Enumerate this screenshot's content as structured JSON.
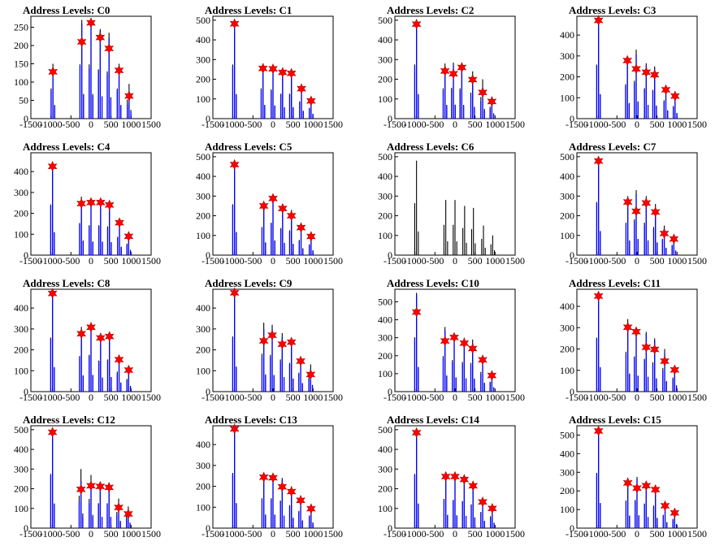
{
  "chart_data": {
    "type": "bar",
    "layout": {
      "rows": 4,
      "cols": 4
    },
    "xlim": [
      -1500,
      1500
    ],
    "xticks": [
      -1500,
      -1000,
      -500,
      0,
      500,
      1000,
      1500
    ],
    "colors": {
      "black_histogram": "#000000",
      "blue_histogram": "#0000ff",
      "peak_marker": "#ff0000"
    },
    "panels": [
      {
        "title": "Address Levels: C0",
        "ylim": [
          0,
          280
        ],
        "yticks": [
          0,
          50,
          100,
          150,
          200,
          250
        ],
        "peak_x": [
          -950,
          -230,
          0,
          230,
          450,
          700,
          950
        ],
        "black_max": [
          150,
          270,
          270,
          245,
          235,
          150,
          95
        ],
        "blue_max": [
          140,
          260,
          250,
          240,
          220,
          140,
          70
        ],
        "markers": [
          128,
          210,
          262,
          222,
          192,
          132,
          62
        ]
      },
      {
        "title": "Address Levels: C1",
        "ylim": [
          0,
          520
        ],
        "yticks": [
          0,
          100,
          200,
          300,
          400,
          500
        ],
        "peak_x": [
          -960,
          -250,
          0,
          240,
          460,
          710,
          950
        ],
        "black_max": [
          500,
          280,
          270,
          230,
          230,
          160,
          100
        ],
        "blue_max": [
          485,
          265,
          255,
          225,
          225,
          150,
          90
        ],
        "markers": [
          482,
          255,
          253,
          235,
          230,
          152,
          90
        ]
      },
      {
        "title": "Address Levels: C2",
        "ylim": [
          0,
          520
        ],
        "yticks": [
          0,
          100,
          200,
          300,
          400,
          500
        ],
        "peak_x": [
          -960,
          -250,
          -40,
          170,
          440,
          690,
          920
        ],
        "black_max": [
          500,
          280,
          285,
          280,
          240,
          200,
          110
        ],
        "blue_max": [
          485,
          260,
          270,
          260,
          220,
          160,
          90
        ],
        "markers": [
          480,
          242,
          228,
          260,
          198,
          133,
          87
        ]
      },
      {
        "title": "Address Levels: C3",
        "ylim": [
          0,
          490
        ],
        "yticks": [
          0,
          100,
          200,
          300,
          400
        ],
        "peak_x": [
          -960,
          -240,
          -20,
          230,
          440,
          720,
          950
        ],
        "black_max": [
          470,
          300,
          330,
          265,
          250,
          160,
          110
        ],
        "blue_max": [
          460,
          280,
          310,
          255,
          240,
          150,
          100
        ],
        "markers": [
          470,
          278,
          238,
          222,
          210,
          138,
          108
        ]
      },
      {
        "title": "Address Levels: C4",
        "ylim": [
          0,
          490
        ],
        "yticks": [
          0,
          100,
          200,
          300,
          400
        ],
        "peak_x": [
          -960,
          -240,
          0,
          240,
          460,
          710,
          940
        ],
        "black_max": [
          440,
          280,
          260,
          260,
          250,
          160,
          100
        ],
        "blue_max": [
          430,
          265,
          250,
          250,
          240,
          150,
          90
        ],
        "markers": [
          425,
          247,
          252,
          252,
          240,
          155,
          90
        ]
      },
      {
        "title": "Address Levels: C5",
        "ylim": [
          0,
          520
        ],
        "yticks": [
          0,
          100,
          200,
          300,
          400,
          500
        ],
        "peak_x": [
          -960,
          -230,
          0,
          240,
          460,
          700,
          950
        ],
        "black_max": [
          470,
          260,
          300,
          250,
          230,
          140,
          100
        ],
        "blue_max": [
          460,
          250,
          290,
          240,
          220,
          130,
          90
        ],
        "markers": [
          460,
          250,
          288,
          237,
          200,
          140,
          95
        ]
      },
      {
        "title": "Address Levels: C6",
        "ylim": [
          0,
          520
        ],
        "yticks": [
          0,
          100,
          200,
          300,
          400,
          500
        ],
        "peak_x": [
          -960,
          -230,
          0,
          240,
          460,
          710,
          940
        ],
        "black_max": [
          480,
          280,
          280,
          250,
          240,
          150,
          100
        ],
        "blue_max": [],
        "markers": []
      },
      {
        "title": "Address Levels: C7",
        "ylim": [
          0,
          520
        ],
        "yticks": [
          0,
          100,
          200,
          300,
          400,
          500
        ],
        "peak_x": [
          -960,
          -230,
          -20,
          230,
          460,
          680,
          920
        ],
        "black_max": [
          490,
          300,
          330,
          300,
          260,
          150,
          95
        ],
        "blue_max": [
          480,
          280,
          310,
          280,
          240,
          140,
          85
        ],
        "markers": [
          478,
          270,
          223,
          265,
          219,
          110,
          82
        ]
      },
      {
        "title": "Address Levels: C8",
        "ylim": [
          0,
          490
        ],
        "yticks": [
          0,
          100,
          200,
          300,
          400
        ],
        "peak_x": [
          -960,
          -240,
          0,
          240,
          460,
          700,
          940
        ],
        "black_max": [
          470,
          310,
          320,
          270,
          280,
          175,
          110
        ],
        "blue_max": [
          460,
          300,
          310,
          260,
          270,
          160,
          100
        ],
        "markers": [
          470,
          277,
          308,
          257,
          264,
          153,
          103
        ]
      },
      {
        "title": "Address Levels: C9",
        "ylim": [
          0,
          490
        ],
        "yticks": [
          0,
          100,
          200,
          300,
          400
        ],
        "peak_x": [
          -960,
          -230,
          -20,
          230,
          460,
          690,
          940
        ],
        "black_max": [
          480,
          330,
          320,
          280,
          250,
          165,
          130
        ],
        "blue_max": [
          470,
          300,
          300,
          260,
          240,
          150,
          110
        ],
        "markers": [
          473,
          243,
          270,
          227,
          237,
          146,
          82
        ]
      },
      {
        "title": "Address Levels: C10",
        "ylim": [
          0,
          570
        ],
        "yticks": [
          0,
          100,
          200,
          300,
          400,
          500
        ],
        "peak_x": [
          -960,
          -250,
          -20,
          230,
          440,
          690,
          920
        ],
        "black_max": [
          550,
          360,
          320,
          300,
          290,
          200,
          100
        ],
        "blue_max": [
          540,
          340,
          300,
          280,
          270,
          180,
          90
        ],
        "markers": [
          443,
          282,
          302,
          270,
          240,
          177,
          90
        ]
      },
      {
        "title": "Address Levels: C11",
        "ylim": [
          0,
          480
        ],
        "yticks": [
          0,
          100,
          200,
          300,
          400
        ],
        "peak_x": [
          -960,
          -230,
          -20,
          230,
          440,
          690,
          940
        ],
        "black_max": [
          460,
          340,
          300,
          280,
          250,
          200,
          120
        ],
        "blue_max": [
          450,
          320,
          290,
          270,
          240,
          180,
          110
        ],
        "markers": [
          448,
          302,
          281,
          208,
          198,
          143,
          102
        ]
      },
      {
        "title": "Address Levels: C12",
        "ylim": [
          0,
          520
        ],
        "yticks": [
          0,
          100,
          200,
          300,
          400,
          500
        ],
        "peak_x": [
          -960,
          -250,
          0,
          230,
          450,
          690,
          930
        ],
        "black_max": [
          500,
          300,
          270,
          230,
          230,
          150,
          110
        ],
        "blue_max": [
          490,
          240,
          230,
          220,
          220,
          120,
          90
        ],
        "markers": [
          487,
          197,
          215,
          212,
          207,
          105,
          72
        ]
      },
      {
        "title": "Address Levels: C13",
        "ylim": [
          0,
          490
        ],
        "yticks": [
          0,
          100,
          200,
          300,
          400
        ],
        "peak_x": [
          -960,
          -230,
          0,
          230,
          460,
          690,
          950
        ],
        "black_max": [
          480,
          260,
          260,
          240,
          200,
          150,
          110
        ],
        "blue_max": [
          470,
          250,
          250,
          230,
          190,
          140,
          100
        ],
        "markers": [
          475,
          244,
          241,
          198,
          175,
          133,
          93
        ]
      },
      {
        "title": "Address Levels: C14",
        "ylim": [
          0,
          520
        ],
        "yticks": [
          0,
          100,
          200,
          300,
          400,
          500
        ],
        "peak_x": [
          -960,
          -230,
          0,
          230,
          450,
          690,
          930
        ],
        "black_max": [
          500,
          270,
          260,
          250,
          220,
          150,
          110
        ],
        "blue_max": [
          490,
          260,
          255,
          245,
          210,
          140,
          100
        ],
        "markers": [
          485,
          262,
          262,
          247,
          215,
          133,
          100
        ]
      },
      {
        "title": "Address Levels: C15",
        "ylim": [
          0,
          550
        ],
        "yticks": [
          0,
          100,
          200,
          300,
          400,
          500
        ],
        "peak_x": [
          -960,
          -230,
          0,
          230,
          460,
          700,
          940
        ],
        "black_max": [
          540,
          270,
          275,
          240,
          220,
          130,
          90
        ],
        "blue_max": [
          530,
          260,
          265,
          230,
          210,
          120,
          80
        ],
        "markers": [
          522,
          243,
          215,
          228,
          207,
          120,
          82
        ]
      }
    ]
  }
}
